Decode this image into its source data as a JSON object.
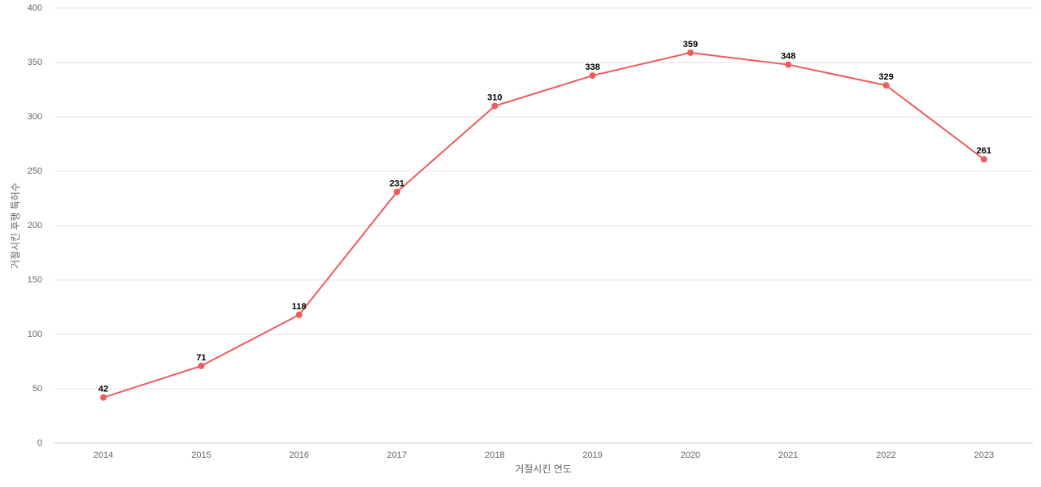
{
  "chart_data": {
    "type": "line",
    "x_label": "거절시킨 연도",
    "y_label": "거절시킨 후행 특허수",
    "categories": [
      "2014",
      "2015",
      "2016",
      "2017",
      "2018",
      "2019",
      "2020",
      "2021",
      "2022",
      "2023"
    ],
    "values": [
      42,
      71,
      118,
      231,
      310,
      338,
      359,
      348,
      329,
      261
    ],
    "color": "#ef5a5a",
    "ylim": [
      0,
      400
    ],
    "yticks": [
      0,
      50,
      100,
      150,
      200,
      250,
      300,
      350,
      400
    ],
    "grid": true
  }
}
